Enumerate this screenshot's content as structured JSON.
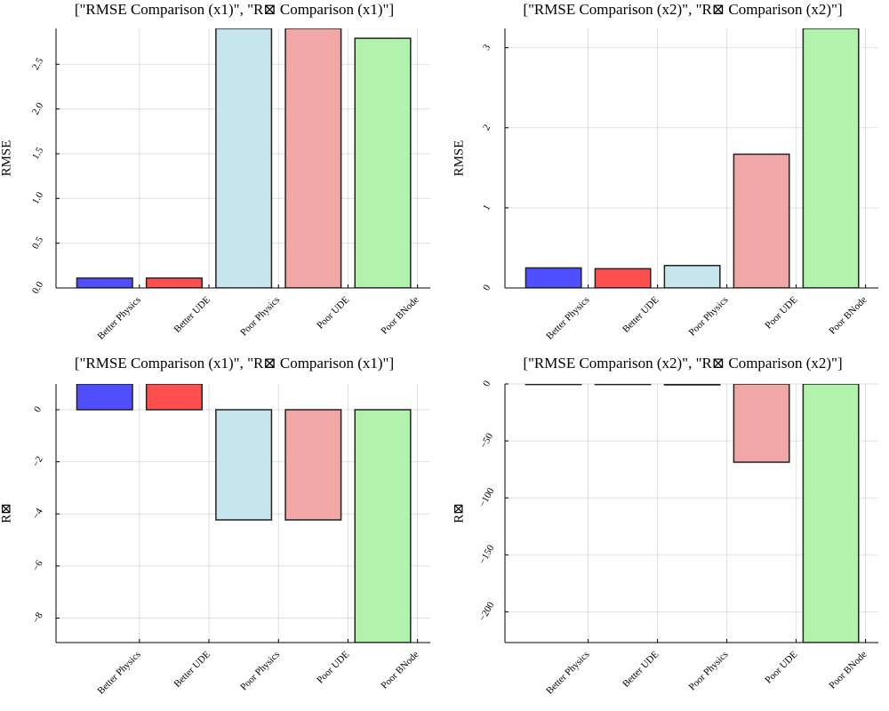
{
  "chart_data": [
    {
      "type": "bar",
      "title": "[\"RMSE Comparison (x1)\", \"R⊠ Comparison (x1)\"]",
      "ylabel": "RMSE",
      "categories": [
        "Better Physics",
        "Better UDE",
        "Poor Physics",
        "Poor UDE",
        "Poor BNode"
      ],
      "values": [
        0.11,
        0.11,
        2.9,
        2.9,
        2.79
      ],
      "colors": [
        "#4b4bff",
        "#ff4b4b",
        "#c6e4ec",
        "#f2a5a5",
        "#aff2aa"
      ],
      "ylim": [
        0,
        2.9
      ],
      "yticks": [
        {
          "value": 0,
          "label": "0.0"
        },
        0.5,
        {
          "value": 1,
          "label": "1.0"
        },
        1.5,
        {
          "value": 2,
          "label": "2.0"
        },
        2.5
      ],
      "grid": true
    },
    {
      "type": "bar",
      "title": "[\"RMSE Comparison (x2)\", \"R⊠ Comparison (x2)\"]",
      "ylabel": "RMSE",
      "categories": [
        "Better Physics",
        "Better UDE",
        "Poor Physics",
        "Poor UDE",
        "Poor BNode"
      ],
      "values": [
        0.25,
        0.24,
        0.28,
        1.67,
        3.24
      ],
      "colors": [
        "#4b4bff",
        "#ff4b4b",
        "#c6e4ec",
        "#f2a5a5",
        "#aff2aa"
      ],
      "ylim": [
        0,
        3.24
      ],
      "yticks": [
        0,
        1,
        2,
        3
      ],
      "grid": true
    },
    {
      "type": "bar",
      "title": "[\"RMSE Comparison (x1)\", \"R⊠ Comparison (x1)\"]",
      "ylabel": "R⊠",
      "categories": [
        "Better Physics",
        "Better UDE",
        "Poor Physics",
        "Poor UDE",
        "Poor BNode"
      ],
      "values": [
        0.99,
        0.99,
        -4.23,
        -4.23,
        -8.94
      ],
      "colors": [
        "#4b4bff",
        "#ff4b4b",
        "#c6e4ec",
        "#f2a5a5",
        "#aff2aa"
      ],
      "ylim": [
        -8.94,
        0.99
      ],
      "yticks": [
        {
          "value": -8,
          "label": "−8"
        },
        {
          "value": -6,
          "label": "−6"
        },
        {
          "value": -4,
          "label": "−4"
        },
        {
          "value": -2,
          "label": "−2"
        },
        0
      ],
      "grid": true
    },
    {
      "type": "bar",
      "title": "[\"RMSE Comparison (x2)\", \"R⊠ Comparison (x2)\"]",
      "ylabel": "R⊠",
      "categories": [
        "Better Physics",
        "Better UDE",
        "Poor Physics",
        "Poor UDE",
        "Poor BNode"
      ],
      "values": [
        -0.5,
        -0.5,
        -0.8,
        -68.7,
        -227
      ],
      "colors": [
        "#4b4bff",
        "#ff4b4b",
        "#c6e4ec",
        "#f2a5a5",
        "#aff2aa"
      ],
      "ylim": [
        -227,
        0
      ],
      "yticks": [
        {
          "value": -200,
          "label": "−200"
        },
        {
          "value": -150,
          "label": "−150"
        },
        {
          "value": -100,
          "label": "−100"
        },
        {
          "value": -50,
          "label": "−50"
        },
        0
      ],
      "grid": true
    }
  ]
}
